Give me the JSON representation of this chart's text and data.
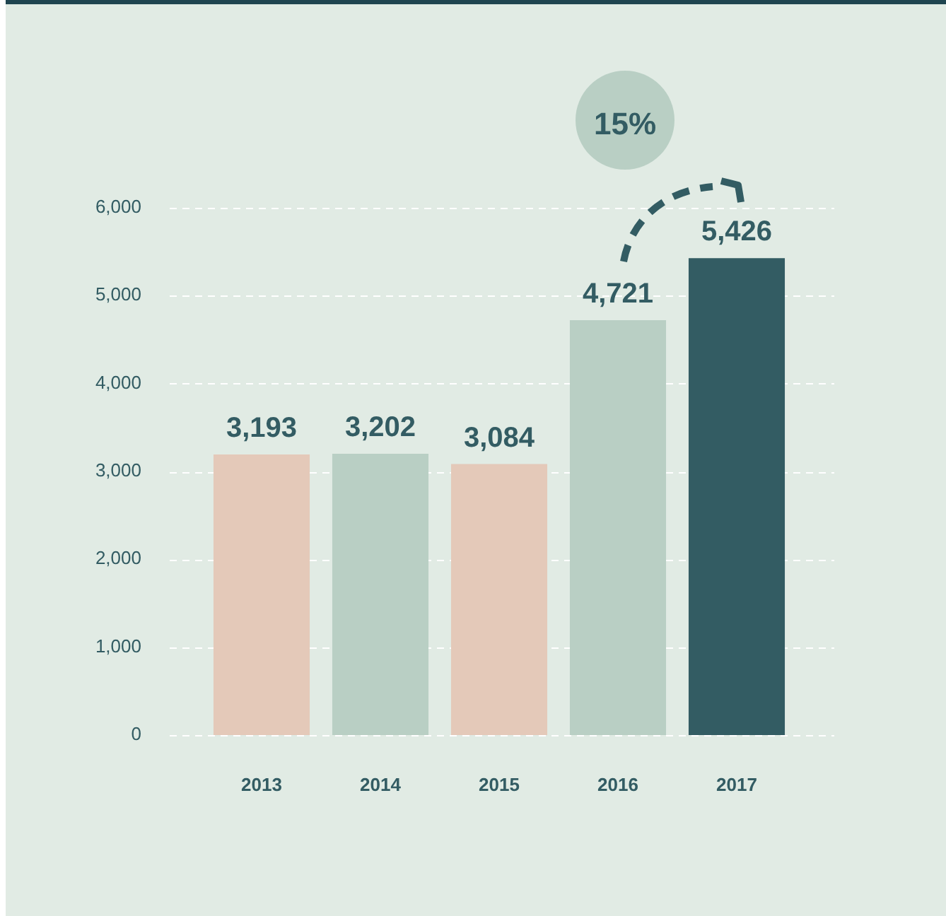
{
  "chart_data": {
    "type": "bar",
    "categories": [
      "2013",
      "2014",
      "2015",
      "2016",
      "2017"
    ],
    "values": [
      3193,
      3202,
      3084,
      4721,
      5426
    ],
    "colors": [
      "#e4c9b9",
      "#b9cfc4",
      "#e4c9b9",
      "#b9cfc4",
      "#335c63"
    ],
    "value_labels": [
      "3,193",
      "3,202",
      "3,084",
      "4,721",
      "5,426"
    ],
    "ylim": [
      0,
      6000
    ],
    "yticks": [
      0,
      {
        "value": 1000,
        "label": "1,000"
      },
      {
        "value": 2000,
        "label": "2,000"
      },
      {
        "value": 3000,
        "label": "3,000"
      },
      {
        "value": 4000,
        "label": "4,000"
      },
      {
        "value": 5000,
        "label": "5,000"
      },
      {
        "value": 6000,
        "label": "6,000"
      }
    ],
    "grid": "y",
    "legend": false,
    "annotations": [
      "15%"
    ]
  }
}
